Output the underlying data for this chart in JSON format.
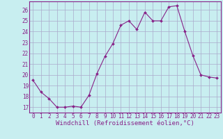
{
  "x": [
    0,
    1,
    2,
    3,
    4,
    5,
    6,
    7,
    8,
    9,
    10,
    11,
    12,
    13,
    14,
    15,
    16,
    17,
    18,
    19,
    20,
    21,
    22,
    23
  ],
  "y": [
    19.5,
    18.4,
    17.8,
    17.0,
    17.0,
    17.1,
    17.0,
    18.1,
    20.1,
    21.7,
    22.9,
    24.6,
    25.0,
    24.2,
    25.8,
    25.0,
    25.0,
    26.3,
    26.4,
    24.0,
    21.8,
    20.0,
    19.8,
    19.7
  ],
  "line_color": "#882288",
  "marker": "D",
  "marker_size": 2.0,
  "bg_color": "#c8eef0",
  "grid_color": "#aaaacc",
  "xlabel": "Windchill (Refroidissement éolien,°C)",
  "xlim": [
    -0.5,
    23.5
  ],
  "ylim": [
    16.5,
    26.8
  ],
  "yticks": [
    17,
    18,
    19,
    20,
    21,
    22,
    23,
    24,
    25,
    26
  ],
  "xticks": [
    0,
    1,
    2,
    3,
    4,
    5,
    6,
    7,
    8,
    9,
    10,
    11,
    12,
    13,
    14,
    15,
    16,
    17,
    18,
    19,
    20,
    21,
    22,
    23
  ],
  "axis_color": "#882288",
  "tick_color": "#882288",
  "tick_fontsize": 5.5,
  "xlabel_fontsize": 6.5
}
